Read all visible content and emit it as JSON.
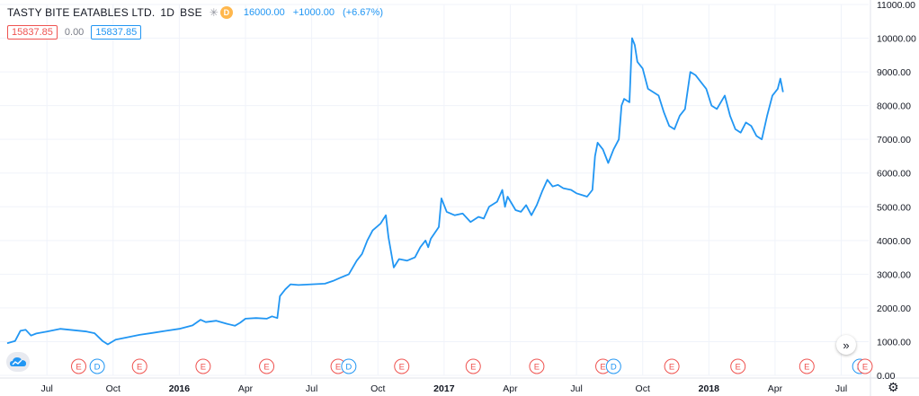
{
  "legend": {
    "symbol_name": "TASTY BITE EATABLES LTD.",
    "interval": "1D",
    "exchange": "BSE",
    "snowflake_icon": "snowflake-icon",
    "badge_label": "D",
    "ohlc": [
      "16000.00",
      "+1000.00",
      "(+6.67%)"
    ]
  },
  "values": {
    "bid": "15837.85",
    "spread": "0.00",
    "ask": "15837.85"
  },
  "colors": {
    "line": "#2196f3",
    "earnings": "#ef5350",
    "dividend": "#2196f3",
    "badge": "#ffb74d",
    "grid": "#f0f3fa"
  },
  "chart_data": {
    "type": "line",
    "ylim": [
      0,
      11000
    ],
    "y_ticks": [
      "11000.00",
      "10000.00",
      "9000.00",
      "8000.00",
      "7000.00",
      "6000.00",
      "5000.00",
      "4000.00",
      "3000.00",
      "2000.00",
      "1000.00",
      "0.00"
    ],
    "y_tick_values": [
      11000,
      10000,
      9000,
      8000,
      7000,
      6000,
      5000,
      4000,
      3000,
      2000,
      1000,
      0
    ],
    "x_labels": [
      {
        "label": "Jul",
        "x": 2015.5,
        "bold": false
      },
      {
        "label": "Oct",
        "x": 2015.75,
        "bold": false
      },
      {
        "label": "2016",
        "x": 2016.0,
        "bold": true
      },
      {
        "label": "Apr",
        "x": 2016.25,
        "bold": false
      },
      {
        "label": "Jul",
        "x": 2016.5,
        "bold": false
      },
      {
        "label": "Oct",
        "x": 2016.75,
        "bold": false
      },
      {
        "label": "2017",
        "x": 2017.0,
        "bold": true
      },
      {
        "label": "Apr",
        "x": 2017.25,
        "bold": false
      },
      {
        "label": "Jul",
        "x": 2017.5,
        "bold": false
      },
      {
        "label": "Oct",
        "x": 2017.75,
        "bold": false
      },
      {
        "label": "2018",
        "x": 2018.0,
        "bold": true
      },
      {
        "label": "Apr",
        "x": 2018.25,
        "bold": false
      },
      {
        "label": "Jul",
        "x": 2018.5,
        "bold": false
      }
    ],
    "x_range": [
      2015.35,
      2018.6
    ],
    "series": [
      {
        "points": [
          [
            2015.35,
            950
          ],
          [
            2015.38,
            1020
          ],
          [
            2015.4,
            1320
          ],
          [
            2015.42,
            1350
          ],
          [
            2015.44,
            1180
          ],
          [
            2015.46,
            1240
          ],
          [
            2015.5,
            1300
          ],
          [
            2015.55,
            1380
          ],
          [
            2015.6,
            1340
          ],
          [
            2015.65,
            1300
          ],
          [
            2015.68,
            1250
          ],
          [
            2015.71,
            1020
          ],
          [
            2015.73,
            920
          ],
          [
            2015.76,
            1060
          ],
          [
            2015.8,
            1120
          ],
          [
            2015.85,
            1200
          ],
          [
            2015.9,
            1260
          ],
          [
            2015.95,
            1320
          ],
          [
            2016.0,
            1380
          ],
          [
            2016.05,
            1480
          ],
          [
            2016.08,
            1650
          ],
          [
            2016.1,
            1580
          ],
          [
            2016.14,
            1620
          ],
          [
            2016.18,
            1530
          ],
          [
            2016.21,
            1470
          ],
          [
            2016.23,
            1560
          ],
          [
            2016.25,
            1680
          ],
          [
            2016.29,
            1700
          ],
          [
            2016.33,
            1680
          ],
          [
            2016.35,
            1750
          ],
          [
            2016.37,
            1700
          ],
          [
            2016.38,
            2350
          ],
          [
            2016.4,
            2550
          ],
          [
            2016.42,
            2700
          ],
          [
            2016.45,
            2680
          ],
          [
            2016.5,
            2700
          ],
          [
            2016.55,
            2720
          ],
          [
            2016.58,
            2800
          ],
          [
            2016.61,
            2900
          ],
          [
            2016.64,
            3000
          ],
          [
            2016.67,
            3400
          ],
          [
            2016.69,
            3600
          ],
          [
            2016.71,
            4000
          ],
          [
            2016.73,
            4300
          ],
          [
            2016.76,
            4500
          ],
          [
            2016.78,
            4750
          ],
          [
            2016.79,
            4100
          ],
          [
            2016.81,
            3200
          ],
          [
            2016.83,
            3450
          ],
          [
            2016.86,
            3400
          ],
          [
            2016.89,
            3500
          ],
          [
            2016.91,
            3800
          ],
          [
            2016.93,
            4000
          ],
          [
            2016.94,
            3800
          ],
          [
            2016.95,
            4050
          ],
          [
            2016.98,
            4400
          ],
          [
            2016.99,
            5250
          ],
          [
            2017.01,
            4850
          ],
          [
            2017.04,
            4750
          ],
          [
            2017.07,
            4800
          ],
          [
            2017.1,
            4550
          ],
          [
            2017.13,
            4700
          ],
          [
            2017.15,
            4650
          ],
          [
            2017.17,
            5000
          ],
          [
            2017.2,
            5150
          ],
          [
            2017.22,
            5500
          ],
          [
            2017.23,
            5000
          ],
          [
            2017.24,
            5300
          ],
          [
            2017.27,
            4900
          ],
          [
            2017.29,
            4850
          ],
          [
            2017.31,
            5050
          ],
          [
            2017.33,
            4750
          ],
          [
            2017.35,
            5050
          ],
          [
            2017.37,
            5450
          ],
          [
            2017.39,
            5800
          ],
          [
            2017.41,
            5600
          ],
          [
            2017.43,
            5650
          ],
          [
            2017.45,
            5550
          ],
          [
            2017.48,
            5500
          ],
          [
            2017.5,
            5400
          ],
          [
            2017.52,
            5350
          ],
          [
            2017.54,
            5300
          ],
          [
            2017.56,
            5500
          ],
          [
            2017.57,
            6500
          ],
          [
            2017.58,
            6900
          ],
          [
            2017.6,
            6700
          ],
          [
            2017.62,
            6300
          ],
          [
            2017.64,
            6700
          ],
          [
            2017.66,
            7000
          ],
          [
            2017.67,
            8000
          ],
          [
            2017.68,
            8200
          ],
          [
            2017.7,
            8100
          ],
          [
            2017.71,
            10000
          ],
          [
            2017.72,
            9800
          ],
          [
            2017.73,
            9300
          ],
          [
            2017.75,
            9100
          ],
          [
            2017.77,
            8500
          ],
          [
            2017.79,
            8400
          ],
          [
            2017.81,
            8300
          ],
          [
            2017.83,
            7800
          ],
          [
            2017.85,
            7400
          ],
          [
            2017.87,
            7300
          ],
          [
            2017.89,
            7700
          ],
          [
            2017.91,
            7900
          ],
          [
            2017.93,
            9000
          ],
          [
            2017.95,
            8900
          ],
          [
            2017.97,
            8700
          ],
          [
            2017.99,
            8500
          ],
          [
            2018.01,
            8000
          ],
          [
            2018.03,
            7900
          ],
          [
            2018.06,
            8300
          ],
          [
            2018.08,
            7700
          ],
          [
            2018.1,
            7300
          ],
          [
            2018.12,
            7200
          ],
          [
            2018.14,
            7500
          ],
          [
            2018.16,
            7400
          ],
          [
            2018.18,
            7100
          ],
          [
            2018.2,
            7000
          ],
          [
            2018.22,
            7700
          ],
          [
            2018.24,
            8300
          ],
          [
            2018.26,
            8500
          ],
          [
            2018.27,
            8800
          ],
          [
            2018.28,
            8400
          ]
        ]
      }
    ],
    "events": [
      {
        "label": "E",
        "kind": "earnings",
        "x": 2015.62
      },
      {
        "label": "D",
        "kind": "dividend",
        "x": 2015.69
      },
      {
        "label": "E",
        "kind": "earnings",
        "x": 2015.85
      },
      {
        "label": "E",
        "kind": "earnings",
        "x": 2016.09
      },
      {
        "label": "E",
        "kind": "earnings",
        "x": 2016.33
      },
      {
        "label": "E",
        "kind": "earnings",
        "x": 2016.6
      },
      {
        "label": "D",
        "kind": "dividend",
        "x": 2016.64
      },
      {
        "label": "E",
        "kind": "earnings",
        "x": 2016.84
      },
      {
        "label": "E",
        "kind": "earnings",
        "x": 2017.11
      },
      {
        "label": "E",
        "kind": "earnings",
        "x": 2017.35
      },
      {
        "label": "E",
        "kind": "earnings",
        "x": 2017.6
      },
      {
        "label": "D",
        "kind": "dividend",
        "x": 2017.64
      },
      {
        "label": "E",
        "kind": "earnings",
        "x": 2017.86
      },
      {
        "label": "E",
        "kind": "earnings",
        "x": 2018.11
      },
      {
        "label": "E",
        "kind": "earnings",
        "x": 2018.37
      },
      {
        "label": "D",
        "kind": "dividend",
        "x": 2018.57
      },
      {
        "label": "E",
        "kind": "earnings",
        "x": 2018.62
      }
    ]
  },
  "controls": {
    "scroll_right_icon": "double-chevron-right-icon",
    "logo_icon": "cloud-logo-icon",
    "settings_icon": "gear-icon"
  }
}
